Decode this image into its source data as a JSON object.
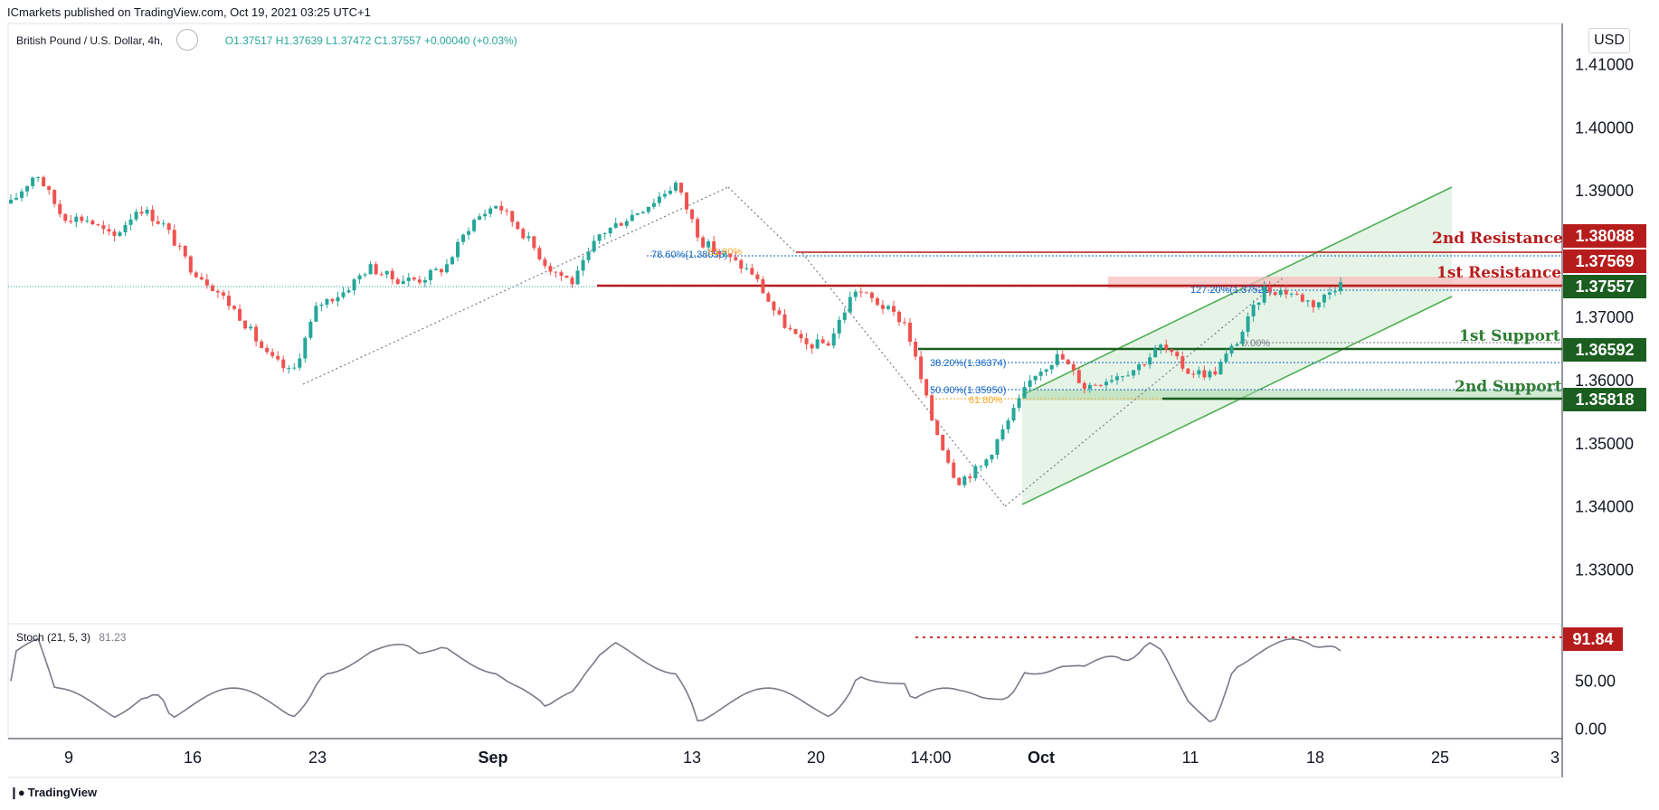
{
  "publisher": "ICmarkets published on TradingView.com, Oct 19, 2021 03:25 UTC+1",
  "symbol": {
    "name": "British Pound / U.S. Dollar, 4h,",
    "ohlc_label": "O1.37517 H1.37639 L1.37472 C1.37557 +0.00040 (+0.03%)"
  },
  "currency": "USD",
  "logo_text": "TradingView",
  "stoch": {
    "label": "Stoch (21, 5, 3)",
    "value": "81.23"
  },
  "colors": {
    "resistance": "#b71c1c",
    "support": "#1b5e20",
    "channel": "#4caf50",
    "bull": "#26a69a",
    "bear": "#ef5350"
  },
  "chart_data": {
    "type": "candlestick",
    "title": "British Pound / U.S. Dollar, 4h",
    "timeframe": "4h",
    "x_ticks": [
      "9",
      "16",
      "23",
      "Sep",
      "13",
      "20",
      "14:00",
      "Oct",
      "11",
      "18",
      "25",
      "3"
    ],
    "y_ticks": [
      "1.41000",
      "1.40000",
      "1.39000",
      "1.37000",
      "1.36000",
      "1.35000",
      "1.34000",
      "1.33000"
    ],
    "ylim": [
      1.3215,
      1.4165
    ],
    "last_price": 1.37557,
    "levels": [
      {
        "name": "2nd Resistance",
        "value": 1.38088,
        "price_label": "1.38088",
        "kind": "resistance"
      },
      {
        "name": "1st Resistance",
        "value": 1.37569,
        "price_label": "1.37569",
        "kind": "resistance"
      },
      {
        "name": "last",
        "value": 1.37557,
        "price_label": "1.37557",
        "kind": "last"
      },
      {
        "name": "1st Support",
        "value": 1.36592,
        "price_label": "1.36592",
        "kind": "support"
      },
      {
        "name": "2nd Support",
        "value": 1.35818,
        "price_label": "1.35818",
        "kind": "support"
      }
    ],
    "fib_labels": [
      "78.60%(1.38058)",
      "127.20%(1.37521)",
      "38.20%(1.36374)",
      "50.00%(1.35950)",
      "61.80%",
      "0.00%",
      "61.80%"
    ],
    "price_path": [
      [
        "Aug 5",
        1.388
      ],
      [
        "Aug 6",
        1.393
      ],
      [
        "Aug 9",
        1.386
      ],
      [
        "Aug 11",
        1.3855
      ],
      [
        "Aug 12",
        1.3825
      ],
      [
        "Aug 13",
        1.3875
      ],
      [
        "Aug 16",
        1.3845
      ],
      [
        "Aug 17",
        1.378
      ],
      [
        "Aug 18",
        1.3745
      ],
      [
        "Aug 19",
        1.37
      ],
      [
        "Aug 20",
        1.364
      ],
      [
        "Aug 22",
        1.361
      ],
      [
        "Aug 24",
        1.372
      ],
      [
        "Aug 26",
        1.374
      ],
      [
        "Aug 27",
        1.378
      ],
      [
        "Aug 30",
        1.376
      ],
      [
        "Aug 31",
        1.376
      ],
      [
        "Sep 1",
        1.378
      ],
      [
        "Sep 2",
        1.385
      ],
      [
        "Sep 3",
        1.388
      ],
      [
        "Sep 6",
        1.3835
      ],
      [
        "Sep 7",
        1.378
      ],
      [
        "Sep 8",
        1.3755
      ],
      [
        "Sep 9",
        1.383
      ],
      [
        "Sep 10",
        1.3855
      ],
      [
        "Sep 13",
        1.388
      ],
      [
        "Sep 14",
        1.3912
      ],
      [
        "Sep 15",
        1.382
      ],
      [
        "Sep 16",
        1.3795
      ],
      [
        "Sep 17",
        1.377
      ],
      [
        "Sep 20",
        1.37
      ],
      [
        "Sep 21",
        1.3655
      ],
      [
        "Sep 22",
        1.366
      ],
      [
        "Sep 23",
        1.3745
      ],
      [
        "Sep 24",
        1.372
      ],
      [
        "Sep 27",
        1.369
      ],
      [
        "Sep 28",
        1.354
      ],
      [
        "Sep 29",
        1.344
      ],
      [
        "Sep 30",
        1.3465
      ],
      [
        "Oct 1",
        1.3535
      ],
      [
        "Oct 4",
        1.361
      ],
      [
        "Oct 5",
        1.364
      ],
      [
        "Oct 6",
        1.359
      ],
      [
        "Oct 7",
        1.3605
      ],
      [
        "Oct 8",
        1.362
      ],
      [
        "Oct 11",
        1.3655
      ],
      [
        "Oct 12",
        1.3615
      ],
      [
        "Oct 13",
        1.361
      ],
      [
        "Oct 14",
        1.3665
      ],
      [
        "Oct 15",
        1.3745
      ],
      [
        "Oct 17",
        1.374
      ],
      [
        "Oct 18",
        1.372
      ],
      [
        "Oct 19",
        1.3756
      ]
    ],
    "stochastic": {
      "name": "Stoch (21, 5, 3)",
      "last": 81.23,
      "marked_level_label": "91.84",
      "marked_level": 91.84,
      "y_ticks": [
        "50.00",
        "0.00"
      ],
      "ylim": [
        -5,
        100
      ]
    }
  }
}
